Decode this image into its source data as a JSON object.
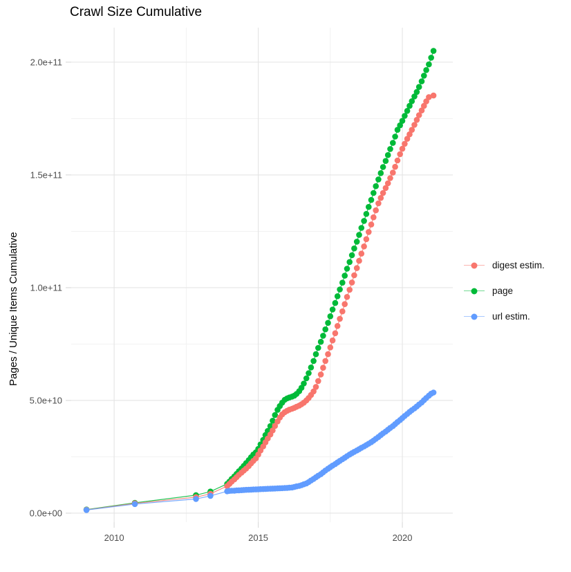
{
  "chart_data": {
    "type": "scatter-line",
    "title": "Crawl Size Cumulative",
    "xlabel": "",
    "ylabel": "Pages / Unique Items Cumulative",
    "grid": true,
    "legend_position": "right",
    "xlim": [
      2008.51,
      2021.75
    ],
    "ylim_billions": [
      -4.0,
      215.3
    ],
    "x_ticks": [
      {
        "v": 2010,
        "label": "2010"
      },
      {
        "v": 2015,
        "label": "2015"
      },
      {
        "v": 2020,
        "label": "2020"
      }
    ],
    "y_ticks": [
      {
        "v": 0,
        "label": "0.0e+00"
      },
      {
        "v": 50,
        "label": "5.0e+10"
      },
      {
        "v": 100,
        "label": "1.0e+11"
      },
      {
        "v": 150,
        "label": "1.5e+11"
      },
      {
        "v": 200,
        "label": "2.0e+11"
      }
    ],
    "x_minor": [
      2012.5,
      2017.5
    ],
    "y_minor": [
      25,
      75,
      125,
      175
    ],
    "y_unit": 1000000000.0,
    "series": [
      {
        "name": "digest estim.",
        "color": "#F8766D",
        "z": 1,
        "points": [
          [
            2009.04,
            1.5
          ],
          [
            2010.72,
            4.35
          ],
          [
            2012.84,
            7.1
          ],
          [
            2013.34,
            8.6
          ],
          [
            2013.92,
            12.0
          ],
          [
            2014.0,
            13.0
          ],
          [
            2014.08,
            14.0
          ],
          [
            2014.17,
            15.0
          ],
          [
            2014.25,
            16.0
          ],
          [
            2014.33,
            17.0
          ],
          [
            2014.42,
            18.0
          ],
          [
            2014.5,
            18.9
          ],
          [
            2014.58,
            19.8
          ],
          [
            2014.67,
            20.9
          ],
          [
            2014.75,
            22.1
          ],
          [
            2014.83,
            23.2
          ],
          [
            2014.92,
            24.3
          ],
          [
            2015.0,
            26.0
          ],
          [
            2015.08,
            27.8
          ],
          [
            2015.17,
            29.6
          ],
          [
            2015.25,
            31.4
          ],
          [
            2015.33,
            33.1
          ],
          [
            2015.42,
            34.9
          ],
          [
            2015.5,
            36.7
          ],
          [
            2015.58,
            38.7
          ],
          [
            2015.67,
            40.7
          ],
          [
            2015.75,
            42.4
          ],
          [
            2015.83,
            43.8
          ],
          [
            2015.92,
            44.8
          ],
          [
            2016.0,
            45.4
          ],
          [
            2016.08,
            45.9
          ],
          [
            2016.17,
            46.3
          ],
          [
            2016.25,
            46.7
          ],
          [
            2016.33,
            47.2
          ],
          [
            2016.42,
            47.7
          ],
          [
            2016.5,
            48.3
          ],
          [
            2016.58,
            49.0
          ],
          [
            2016.67,
            50.0
          ],
          [
            2016.75,
            51.1
          ],
          [
            2016.83,
            52.4
          ],
          [
            2016.92,
            54.0
          ],
          [
            2017.0,
            56.0
          ],
          [
            2017.08,
            58.6
          ],
          [
            2017.17,
            61.5
          ],
          [
            2017.25,
            64.5
          ],
          [
            2017.33,
            67.5
          ],
          [
            2017.42,
            70.5
          ],
          [
            2017.5,
            73.5
          ],
          [
            2017.58,
            76.6
          ],
          [
            2017.67,
            79.8
          ],
          [
            2017.75,
            83.0
          ],
          [
            2017.83,
            86.2
          ],
          [
            2017.92,
            89.5
          ],
          [
            2018.0,
            92.7
          ],
          [
            2018.08,
            95.9
          ],
          [
            2018.17,
            99.1
          ],
          [
            2018.25,
            102.3
          ],
          [
            2018.33,
            105.5
          ],
          [
            2018.42,
            108.7
          ],
          [
            2018.5,
            111.9
          ],
          [
            2018.58,
            115.1
          ],
          [
            2018.67,
            118.3
          ],
          [
            2018.75,
            121.5
          ],
          [
            2018.83,
            124.7
          ],
          [
            2018.92,
            128.0
          ],
          [
            2019.0,
            131.2
          ],
          [
            2019.08,
            134.3
          ],
          [
            2019.17,
            137.4
          ],
          [
            2019.25,
            139.8
          ],
          [
            2019.33,
            142.0
          ],
          [
            2019.42,
            144.2
          ],
          [
            2019.5,
            146.3
          ],
          [
            2019.58,
            148.6
          ],
          [
            2019.67,
            151.0
          ],
          [
            2019.75,
            153.6
          ],
          [
            2019.83,
            156.4
          ],
          [
            2019.92,
            159.2
          ],
          [
            2020.0,
            161.6
          ],
          [
            2020.08,
            163.8
          ],
          [
            2020.17,
            166.0
          ],
          [
            2020.25,
            168.0
          ],
          [
            2020.33,
            170.0
          ],
          [
            2020.42,
            172.2
          ],
          [
            2020.5,
            174.4
          ],
          [
            2020.58,
            176.5
          ],
          [
            2020.67,
            178.6
          ],
          [
            2020.75,
            180.6
          ],
          [
            2020.83,
            182.6
          ],
          [
            2020.92,
            184.5
          ],
          [
            2021.08,
            185.2
          ]
        ]
      },
      {
        "name": "page",
        "color": "#00BA38",
        "z": 0,
        "points": [
          [
            2009.04,
            1.6
          ],
          [
            2010.72,
            4.6
          ],
          [
            2012.84,
            8.0
          ],
          [
            2013.34,
            9.6
          ],
          [
            2013.92,
            13.0
          ],
          [
            2014.0,
            14.0
          ],
          [
            2014.08,
            15.2
          ],
          [
            2014.17,
            16.3
          ],
          [
            2014.25,
            17.4
          ],
          [
            2014.33,
            18.6
          ],
          [
            2014.42,
            19.8
          ],
          [
            2014.5,
            21.0
          ],
          [
            2014.58,
            22.2
          ],
          [
            2014.67,
            23.5
          ],
          [
            2014.75,
            24.8
          ],
          [
            2014.83,
            26.0
          ],
          [
            2014.92,
            27.0
          ],
          [
            2015.0,
            28.5
          ],
          [
            2015.08,
            30.5
          ],
          [
            2015.17,
            32.5
          ],
          [
            2015.25,
            34.6
          ],
          [
            2015.33,
            36.5
          ],
          [
            2015.42,
            38.6
          ],
          [
            2015.5,
            41.0
          ],
          [
            2015.58,
            43.5
          ],
          [
            2015.67,
            45.8
          ],
          [
            2015.75,
            47.5
          ],
          [
            2015.83,
            49.0
          ],
          [
            2015.92,
            50.3
          ],
          [
            2016.0,
            50.9
          ],
          [
            2016.08,
            51.3
          ],
          [
            2016.17,
            51.7
          ],
          [
            2016.25,
            52.1
          ],
          [
            2016.33,
            52.9
          ],
          [
            2016.42,
            54.1
          ],
          [
            2016.5,
            55.6
          ],
          [
            2016.58,
            57.5
          ],
          [
            2016.67,
            59.8
          ],
          [
            2016.75,
            62.1
          ],
          [
            2016.83,
            64.6
          ],
          [
            2016.92,
            67.5
          ],
          [
            2017.0,
            70.5
          ],
          [
            2017.08,
            73.3
          ],
          [
            2017.17,
            76.0
          ],
          [
            2017.25,
            78.7
          ],
          [
            2017.33,
            81.5
          ],
          [
            2017.42,
            84.4
          ],
          [
            2017.5,
            87.3
          ],
          [
            2017.58,
            90.3
          ],
          [
            2017.67,
            93.2
          ],
          [
            2017.75,
            96.2
          ],
          [
            2017.83,
            99.2
          ],
          [
            2017.92,
            102.2
          ],
          [
            2018.0,
            105.3
          ],
          [
            2018.08,
            108.4
          ],
          [
            2018.17,
            111.4
          ],
          [
            2018.25,
            114.4
          ],
          [
            2018.33,
            117.4
          ],
          [
            2018.42,
            120.4
          ],
          [
            2018.5,
            123.4
          ],
          [
            2018.58,
            126.5
          ],
          [
            2018.67,
            129.6
          ],
          [
            2018.75,
            132.7
          ],
          [
            2018.83,
            135.8
          ],
          [
            2018.92,
            138.9
          ],
          [
            2019.0,
            142.0
          ],
          [
            2019.08,
            145.0
          ],
          [
            2019.17,
            148.0
          ],
          [
            2019.25,
            150.8
          ],
          [
            2019.33,
            153.5
          ],
          [
            2019.42,
            156.2
          ],
          [
            2019.5,
            158.8
          ],
          [
            2019.58,
            161.5
          ],
          [
            2019.67,
            164.2
          ],
          [
            2019.75,
            167.0
          ],
          [
            2019.83,
            170.0
          ],
          [
            2019.92,
            172.0
          ],
          [
            2020.0,
            174.0
          ],
          [
            2020.08,
            176.2
          ],
          [
            2020.17,
            178.4
          ],
          [
            2020.25,
            180.6
          ],
          [
            2020.33,
            182.7
          ],
          [
            2020.42,
            184.8
          ],
          [
            2020.5,
            186.8
          ],
          [
            2020.58,
            189.0
          ],
          [
            2020.67,
            191.5
          ],
          [
            2020.75,
            194.0
          ],
          [
            2020.83,
            196.5
          ],
          [
            2020.92,
            199.0
          ],
          [
            2021.0,
            202.0
          ],
          [
            2021.08,
            205.0
          ]
        ]
      },
      {
        "name": "url estim.",
        "color": "#619CFF",
        "z": 2,
        "points": [
          [
            2009.04,
            1.4
          ],
          [
            2010.72,
            4.05
          ],
          [
            2012.84,
            6.3
          ],
          [
            2013.34,
            7.7
          ],
          [
            2013.92,
            9.7
          ],
          [
            2014.0,
            9.9
          ],
          [
            2014.08,
            9.95
          ],
          [
            2014.17,
            10.0
          ],
          [
            2014.25,
            10.1
          ],
          [
            2014.33,
            10.15
          ],
          [
            2014.42,
            10.2
          ],
          [
            2014.5,
            10.3
          ],
          [
            2014.58,
            10.35
          ],
          [
            2014.67,
            10.4
          ],
          [
            2014.75,
            10.45
          ],
          [
            2014.83,
            10.5
          ],
          [
            2014.92,
            10.55
          ],
          [
            2015.0,
            10.6
          ],
          [
            2015.08,
            10.65
          ],
          [
            2015.17,
            10.7
          ],
          [
            2015.25,
            10.75
          ],
          [
            2015.33,
            10.8
          ],
          [
            2015.42,
            10.85
          ],
          [
            2015.5,
            10.9
          ],
          [
            2015.58,
            10.95
          ],
          [
            2015.67,
            11.0
          ],
          [
            2015.75,
            11.05
          ],
          [
            2015.83,
            11.1
          ],
          [
            2015.92,
            11.15
          ],
          [
            2016.0,
            11.2
          ],
          [
            2016.08,
            11.3
          ],
          [
            2016.17,
            11.4
          ],
          [
            2016.25,
            11.6
          ],
          [
            2016.33,
            11.9
          ],
          [
            2016.42,
            12.1
          ],
          [
            2016.5,
            12.4
          ],
          [
            2016.58,
            12.8
          ],
          [
            2016.67,
            13.2
          ],
          [
            2016.75,
            13.8
          ],
          [
            2016.83,
            14.5
          ],
          [
            2016.92,
            15.2
          ],
          [
            2017.0,
            15.9
          ],
          [
            2017.08,
            16.6
          ],
          [
            2017.17,
            17.3
          ],
          [
            2017.25,
            18.1
          ],
          [
            2017.33,
            18.9
          ],
          [
            2017.42,
            19.7
          ],
          [
            2017.5,
            20.4
          ],
          [
            2017.58,
            21.1
          ],
          [
            2017.67,
            21.8
          ],
          [
            2017.75,
            22.5
          ],
          [
            2017.83,
            23.2
          ],
          [
            2017.92,
            23.9
          ],
          [
            2018.0,
            24.6
          ],
          [
            2018.08,
            25.3
          ],
          [
            2018.17,
            26.0
          ],
          [
            2018.25,
            26.6
          ],
          [
            2018.33,
            27.2
          ],
          [
            2018.42,
            27.8
          ],
          [
            2018.5,
            28.4
          ],
          [
            2018.58,
            29.0
          ],
          [
            2018.67,
            29.6
          ],
          [
            2018.75,
            30.2
          ],
          [
            2018.83,
            30.8
          ],
          [
            2018.92,
            31.5
          ],
          [
            2019.0,
            32.2
          ],
          [
            2019.08,
            33.0
          ],
          [
            2019.17,
            33.8
          ],
          [
            2019.25,
            34.6
          ],
          [
            2019.33,
            35.4
          ],
          [
            2019.42,
            36.2
          ],
          [
            2019.5,
            37.0
          ],
          [
            2019.58,
            37.8
          ],
          [
            2019.67,
            38.6
          ],
          [
            2019.75,
            39.5
          ],
          [
            2019.83,
            40.4
          ],
          [
            2019.92,
            41.3
          ],
          [
            2020.0,
            42.2
          ],
          [
            2020.08,
            43.1
          ],
          [
            2020.17,
            44.0
          ],
          [
            2020.25,
            44.9
          ],
          [
            2020.33,
            45.7
          ],
          [
            2020.42,
            46.5
          ],
          [
            2020.5,
            47.3
          ],
          [
            2020.58,
            48.2
          ],
          [
            2020.67,
            49.1
          ],
          [
            2020.75,
            50.1
          ],
          [
            2020.83,
            51.1
          ],
          [
            2020.92,
            52.1
          ],
          [
            2021.0,
            53.0
          ],
          [
            2021.08,
            53.5
          ]
        ]
      }
    ],
    "colors": {
      "grid_major": "#e4e4e4",
      "grid_minor": "#f0f0f0",
      "tick_mark": "#d9d9d9",
      "tick_text": "#4d4d4d",
      "title_text": "#000000"
    }
  },
  "legend": {
    "items": [
      {
        "label": "digest estim.",
        "color": "#F8766D"
      },
      {
        "label": "page",
        "color": "#00BA38"
      },
      {
        "label": "url estim.",
        "color": "#619CFF"
      }
    ]
  }
}
